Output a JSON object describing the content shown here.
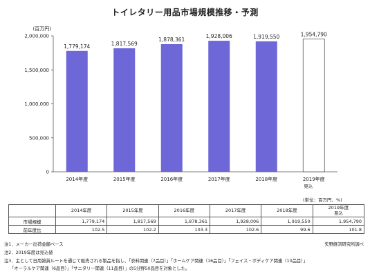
{
  "chart_data": {
    "type": "bar",
    "title": "トイレタリー用品市場規模推移・予測",
    "y_unit": "(百万円)",
    "categories": [
      "2014年度",
      "2015年度",
      "2016年度",
      "2017年度",
      "2018年度",
      "2019年度"
    ],
    "category_sublabels": [
      "",
      "",
      "",
      "",
      "",
      "見込"
    ],
    "values": [
      1779174,
      1817569,
      1878361,
      1928006,
      1919550,
      1954790
    ],
    "value_labels": [
      "1,779,174",
      "1,817,569",
      "1,878,361",
      "1,928,006",
      "1,919,550",
      "1,954,790"
    ],
    "ylim": [
      0,
      2000000
    ],
    "yticks": [
      0,
      500000,
      1000000,
      1500000,
      2000000
    ],
    "ytick_labels": [
      "0",
      "500,000",
      "1,000,000",
      "1,500,000",
      "2,000,000"
    ],
    "bar_color": "#6d67d8",
    "forecast_bar_color": "#ffffff",
    "forecast_index": 5,
    "grid": false
  },
  "table": {
    "unit_note": "(単位：百万円、%)",
    "headers": [
      "",
      "2014年度",
      "2015年度",
      "2016年度",
      "2017年度",
      "2018年度",
      "2019年度\n見込"
    ],
    "rows": [
      {
        "label": "市場規模",
        "values": [
          "1,779,174",
          "1,817,569",
          "1,878,361",
          "1,928,006",
          "1,919,550",
          "1,954,790"
        ]
      },
      {
        "label": "前年度比",
        "values": [
          "102.5",
          "102.2",
          "103.3",
          "102.6",
          "99.6",
          "101.8"
        ]
      }
    ]
  },
  "notes": {
    "note1": "注1．メーカー出荷金額ベース",
    "source": "矢野経済研究所調べ",
    "note2": "注2．2019年度は見込値",
    "note3": "注3．主として日用雑貨ルートを通じて販売される製品を指し、「衣料関連（7品目）」「ホームケア関連（16品目）」「フェイス・ボディケア関連（10品目）」",
    "note3b": "「オーラルケア関連（6品目）」「サニタリー関連（11品目）」の5分野50品目を対象とした。"
  }
}
